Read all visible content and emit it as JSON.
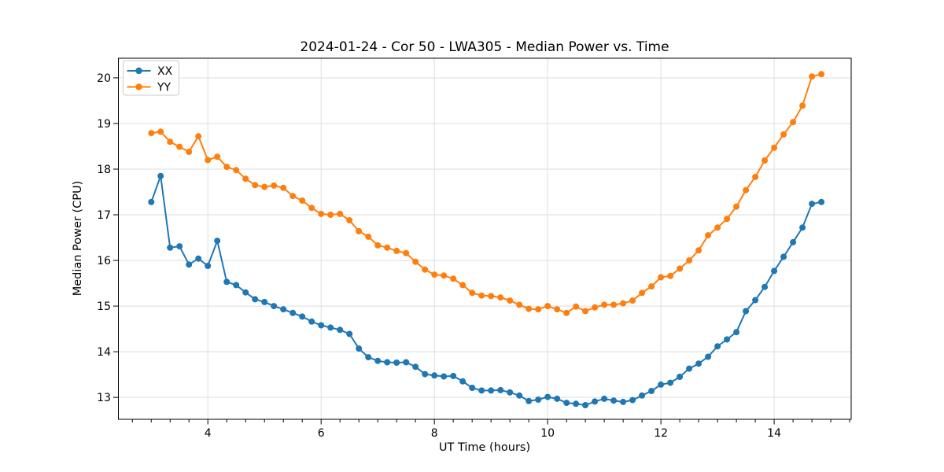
{
  "chart_data": {
    "type": "line",
    "title": "2024-01-24 - Cor 50 - LWA305 - Median Power vs. Time",
    "xlabel": "UT Time (hours)",
    "ylabel": "Median Power (CPU)",
    "xlim": [
      2.42,
      15.36
    ],
    "ylim": [
      12.52,
      20.43
    ],
    "x_ticks": [
      4,
      6,
      8,
      10,
      12,
      14
    ],
    "x_minor_tick_step_hours": 0.3333,
    "y_ticks": [
      13,
      14,
      15,
      16,
      17,
      18,
      19,
      20
    ],
    "grid": true,
    "grid_color": "#dedede",
    "spine_color": "#000000",
    "legend_position": "upper left",
    "x_start": 3.0,
    "x_step": 0.1666667,
    "n_points": 72,
    "series": [
      {
        "name": "XX",
        "color": "#1f77b4",
        "marker": "circle",
        "values": [
          17.28,
          17.85,
          16.28,
          16.31,
          15.91,
          16.04,
          15.88,
          16.43,
          15.53,
          15.46,
          15.3,
          15.15,
          15.09,
          15.0,
          14.93,
          14.85,
          14.77,
          14.66,
          14.58,
          14.53,
          14.48,
          14.39,
          14.07,
          13.88,
          13.8,
          13.77,
          13.76,
          13.77,
          13.67,
          13.51,
          13.48,
          13.46,
          13.47,
          13.35,
          13.21,
          13.15,
          13.15,
          13.16,
          13.11,
          13.04,
          12.92,
          12.95,
          13.01,
          12.97,
          12.88,
          12.86,
          12.83,
          12.91,
          12.97,
          12.93,
          12.9,
          12.94,
          13.04,
          13.14,
          13.28,
          13.32,
          13.45,
          13.63,
          13.74,
          13.89,
          14.12,
          14.27,
          14.43,
          14.89,
          15.13,
          15.42,
          15.77,
          16.08,
          16.4,
          16.72,
          17.24,
          17.28
        ]
      },
      {
        "name": "YY",
        "color": "#ff7f0e",
        "marker": "circle",
        "values": [
          18.79,
          18.82,
          18.6,
          18.49,
          18.38,
          18.72,
          18.2,
          18.27,
          18.05,
          17.98,
          17.79,
          17.65,
          17.61,
          17.64,
          17.59,
          17.41,
          17.31,
          17.15,
          17.02,
          17.0,
          17.02,
          16.88,
          16.64,
          16.52,
          16.33,
          16.28,
          16.21,
          16.16,
          15.97,
          15.8,
          15.69,
          15.67,
          15.6,
          15.46,
          15.29,
          15.23,
          15.22,
          15.19,
          15.12,
          15.03,
          14.94,
          14.93,
          15.0,
          14.93,
          14.85,
          14.99,
          14.89,
          14.97,
          15.03,
          15.03,
          15.06,
          15.12,
          15.29,
          15.43,
          15.63,
          15.66,
          15.82,
          16.0,
          16.22,
          16.55,
          16.72,
          16.91,
          17.18,
          17.54,
          17.83,
          18.19,
          18.47,
          18.76,
          19.03,
          19.39,
          20.03,
          20.08
        ]
      }
    ]
  }
}
